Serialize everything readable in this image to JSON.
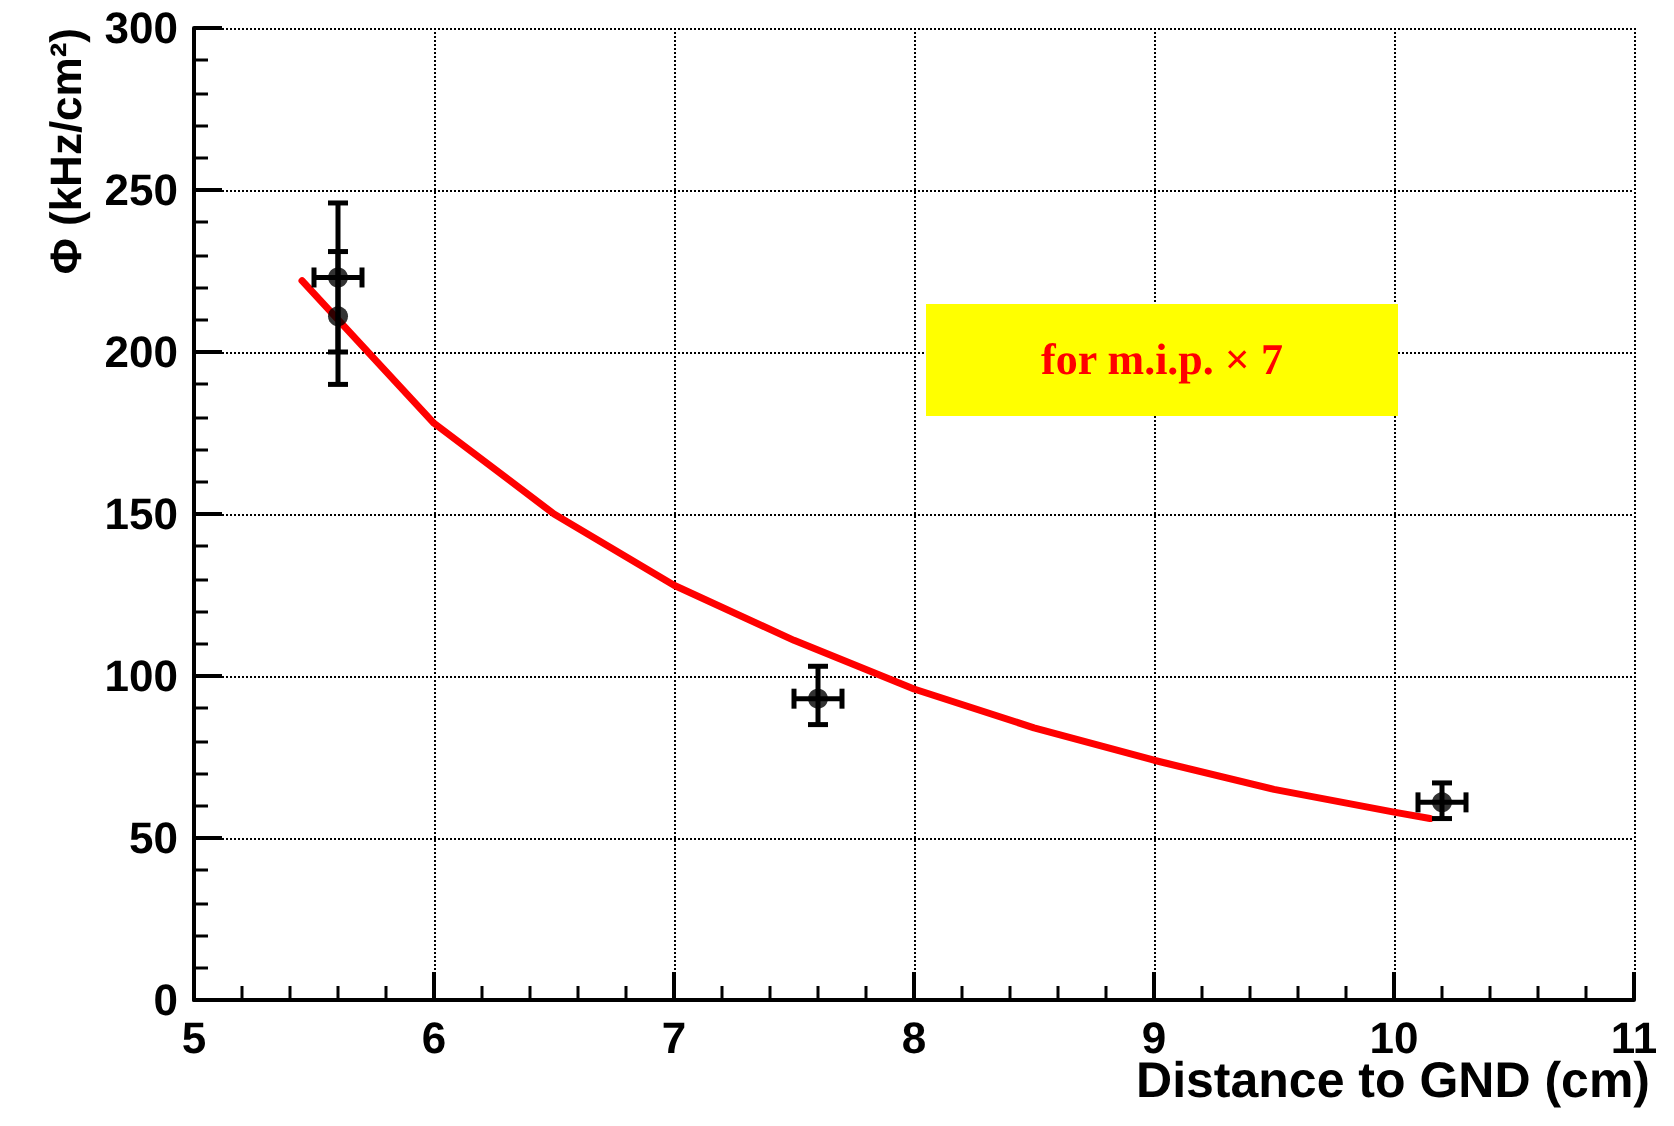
{
  "chart_data": {
    "type": "scatter",
    "xlabel": "Distance to GND (cm)",
    "ylabel": "Φ (kHz/cm²)",
    "xlim": [
      5,
      11
    ],
    "xticks": [
      5,
      6,
      7,
      8,
      9,
      10,
      11
    ],
    "ylim": [
      0,
      300
    ],
    "yticks": [
      0,
      50,
      100,
      150,
      200,
      250,
      300
    ],
    "grid": true,
    "marker": "circle",
    "annotations": [
      "for m.i.p. × 7"
    ],
    "series": [
      {
        "color": "#000000",
        "x": [
          5.6,
          7.6,
          10.2
        ],
        "values": [
          223,
          93,
          61
        ],
        "errors": [
          [
            200,
            246
          ],
          [
            85,
            103
          ],
          [
            56,
            67
          ]
        ],
        "xerrors": [
          0.1,
          0.1,
          0.1
        ]
      },
      {
        "color": "#000000",
        "x": [
          5.6
        ],
        "values": [
          211
        ],
        "errors": [
          [
            190,
            231
          ]
        ]
      },
      {
        "type": "line",
        "color": "#ff0000",
        "marker": "none",
        "x": [
          5.45,
          5.6,
          6,
          6.5,
          7,
          7.5,
          8,
          8.5,
          9,
          9.5,
          10,
          10.15
        ],
        "values": [
          222,
          210,
          178,
          150,
          128,
          111,
          96,
          84,
          74,
          65,
          58,
          56
        ]
      }
    ]
  }
}
